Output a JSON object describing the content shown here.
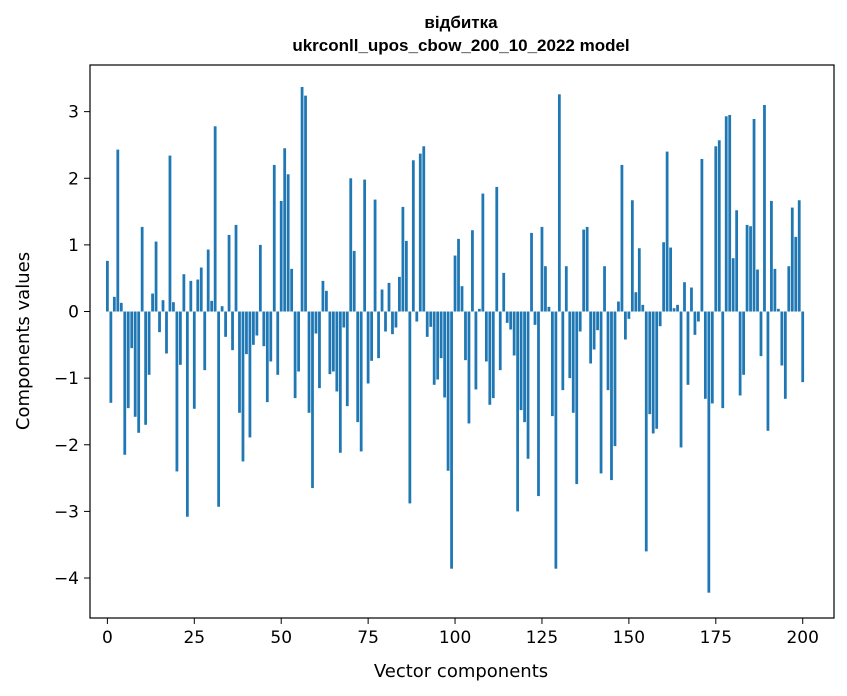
{
  "chart_data": {
    "type": "bar",
    "title": "відбитка",
    "subtitle": "ukrconll_upos_cbow_200_10_2022 model",
    "xlabel": "Vector components",
    "ylabel": "Components values",
    "xlim": [
      -5,
      209
    ],
    "ylim": [
      -4.6,
      3.7
    ],
    "xticks": [
      0,
      25,
      50,
      75,
      100,
      125,
      150,
      175,
      200
    ],
    "yticks": [
      -4,
      -3,
      -2,
      -1,
      0,
      1,
      2,
      3
    ],
    "grid": false,
    "color": "#1f77b4",
    "values": [
      0.76,
      -1.37,
      0.22,
      2.43,
      0.13,
      -2.15,
      -1.45,
      -0.55,
      -1.58,
      -1.82,
      1.27,
      -1.7,
      -0.95,
      0.27,
      1.05,
      -0.31,
      0.17,
      -0.63,
      2.34,
      0.14,
      -2.4,
      -0.8,
      0.56,
      -3.08,
      0.46,
      -1.46,
      0.48,
      0.66,
      -0.88,
      0.93,
      0.16,
      2.78,
      -2.93,
      0.08,
      -0.38,
      1.15,
      -0.58,
      1.3,
      -1.52,
      -2.25,
      -0.64,
      -1.89,
      -0.5,
      -0.36,
      1.0,
      -0.52,
      -1.36,
      -0.75,
      2.2,
      -0.95,
      1.66,
      2.45,
      2.06,
      0.64,
      -1.3,
      -0.9,
      3.37,
      3.24,
      -1.52,
      -2.65,
      -0.33,
      -1.15,
      0.46,
      0.31,
      -0.94,
      -0.9,
      -1.2,
      -2.12,
      -0.24,
      -1.42,
      2.0,
      0.91,
      -1.66,
      -2.1,
      1.98,
      -1.08,
      -0.74,
      1.68,
      -0.7,
      0.33,
      -0.3,
      0.43,
      -0.34,
      -0.24,
      0.52,
      1.57,
      1.06,
      -2.88,
      2.27,
      -0.15,
      2.37,
      2.48,
      -0.38,
      -0.23,
      -1.1,
      -1.02,
      -0.7,
      -1.29,
      -2.39,
      -3.86,
      0.84,
      1.09,
      0.38,
      -0.73,
      -1.68,
      1.22,
      -1.17,
      0.04,
      1.77,
      -0.75,
      -1.4,
      -1.3,
      1.87,
      -0.88,
      0.58,
      -0.17,
      -0.27,
      -0.66,
      -3.0,
      -1.48,
      -1.66,
      -2.21,
      1.18,
      -0.2,
      -2.77,
      1.27,
      0.68,
      0.07,
      -1.57,
      -3.86,
      3.26,
      -1.18,
      0.68,
      -1.0,
      -1.52,
      -2.59,
      -0.3,
      1.23,
      1.27,
      -0.78,
      -0.57,
      -0.28,
      -2.43,
      0.68,
      -1.18,
      -2.53,
      -2.02,
      0.15,
      2.2,
      -0.42,
      -0.11,
      1.67,
      0.29,
      0.95,
      0.1,
      -3.6,
      -1.54,
      -1.83,
      -1.76,
      -0.22,
      1.04,
      2.4,
      0.96,
      0.05,
      0.1,
      -2.04,
      0.44,
      -1.1,
      0.36,
      -0.35,
      -0.15,
      2.29,
      -1.31,
      -4.22,
      -1.38,
      2.48,
      2.57,
      -1.45,
      2.93,
      2.95,
      0.8,
      1.52,
      -1.26,
      -0.95,
      1.3,
      1.28,
      2.89,
      0.63,
      -0.67,
      3.1,
      -1.79,
      1.66,
      0.64,
      0.04,
      -0.81,
      -1.31,
      0.68,
      1.56,
      1.12,
      1.67,
      -1.06
    ]
  }
}
